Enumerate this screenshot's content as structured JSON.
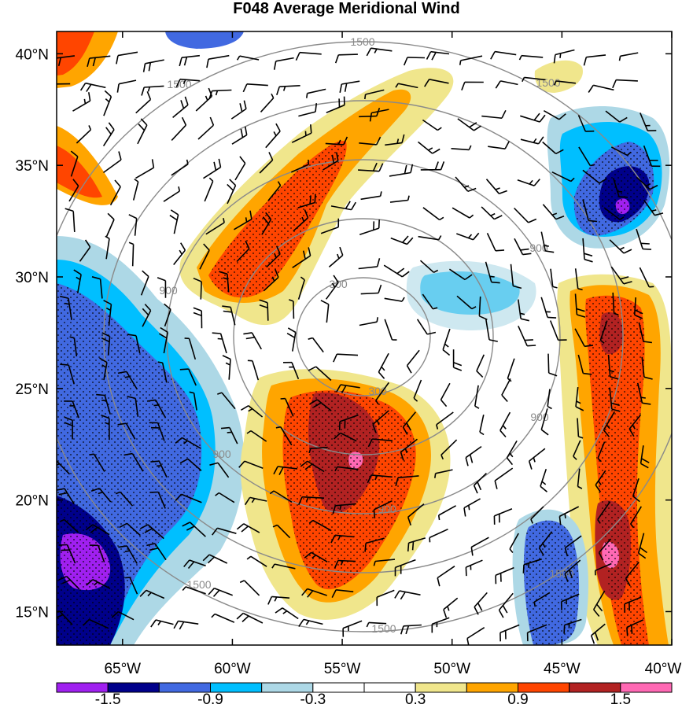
{
  "title": "F048 Average Meridional Wind",
  "chart_data": {
    "type": "heatmap",
    "title": "F048 Average Meridional Wind",
    "x_ticks": [
      "65°W",
      "60°W",
      "55°W",
      "50°W",
      "45°W",
      "40°W"
    ],
    "x_tick_values": [
      -65,
      -60,
      -55,
      -50,
      -45,
      -40
    ],
    "y_ticks": [
      "40°N",
      "35°N",
      "30°N",
      "25°N",
      "20°N",
      "15°N"
    ],
    "y_tick_values": [
      40,
      35,
      30,
      25,
      20,
      15
    ],
    "xlim": [
      -68,
      -40
    ],
    "ylim": [
      13.5,
      41
    ],
    "colorbar": {
      "colors": [
        "#a020f0",
        "#00008b",
        "#4169e1",
        "#00bfff",
        "#add8e6",
        "#ffffff",
        "#ffffff",
        "#f0e68c",
        "#ffa500",
        "#ff4500",
        "#b22222",
        "#ff69b4"
      ],
      "labels": [
        "-1.5",
        "-0.9",
        "-0.3",
        "0.3",
        "0.9",
        "1.5"
      ]
    },
    "range_rings": [
      {
        "label": "300"
      },
      {
        "label": "900"
      },
      {
        "label": "1500"
      }
    ],
    "fields": {
      "note": "shaded meridional wind anomaly with stippling and wind barbs"
    }
  }
}
